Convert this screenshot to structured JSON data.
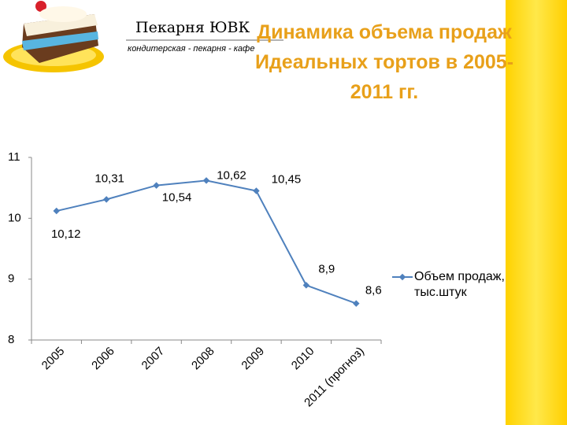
{
  "logo": {
    "name": "Пекарня ЮВК",
    "tagline": "кондитерская - пекарня - кафе"
  },
  "chart_data": {
    "type": "line",
    "title": "Динамика объема продаж Идеальных тортов в 2005-2011 гг.",
    "categories": [
      "2005",
      "2006",
      "2007",
      "2008",
      "2009",
      "2010",
      "2011 (прогноз)"
    ],
    "series": [
      {
        "name": "Объем продаж, тыс.штук",
        "color": "#4f81bd",
        "values": [
          10.12,
          10.31,
          10.54,
          10.62,
          10.45,
          8.9,
          8.6
        ],
        "value_labels": [
          "10,12",
          "10,31",
          "10,54",
          "10,62",
          "10,45",
          "8,9",
          "8,6"
        ]
      }
    ],
    "ylim": [
      8,
      11
    ],
    "yticks": [
      8,
      9,
      10,
      11
    ],
    "grid": false,
    "legend": "right"
  }
}
